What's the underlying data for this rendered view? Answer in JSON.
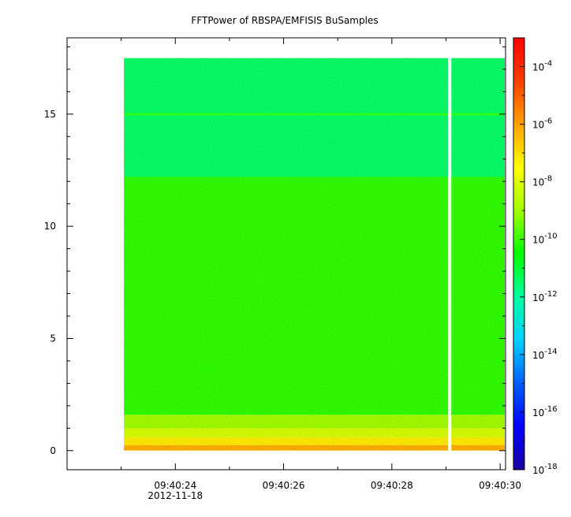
{
  "chart_data": {
    "type": "heatmap",
    "title": "FFTPower of RBSPA/EMFISIS  BuSamples",
    "xlabel": "",
    "ylabel": "",
    "x_tick_labels": [
      "09:40:24",
      "09:40:26",
      "09:40:28",
      "09:40:30"
    ],
    "x_date_label": "2012-11-18",
    "x_range_seconds": [
      22.0,
      30.1
    ],
    "data_x_range_seconds": [
      23.05,
      30.1
    ],
    "gap_at_seconds": 29.07,
    "y_ticks": [
      0,
      5,
      10,
      15
    ],
    "ylim": [
      -0.85,
      18.4
    ],
    "data_y_range": [
      0,
      17.5
    ],
    "colorbar": {
      "scale": "log",
      "range": [
        1e-18,
        0.001
      ],
      "tick_exponents": [
        -18,
        -16,
        -14,
        -12,
        -10,
        -8,
        -6,
        -4
      ],
      "tick_base": "10",
      "colormap": [
        "#1a00a0",
        "#0000ff",
        "#0060ff",
        "#00d0ff",
        "#00ffa0",
        "#00ff00",
        "#a0ff00",
        "#ffff00",
        "#ffa000",
        "#ff4000",
        "#ff0000"
      ]
    },
    "bands": [
      {
        "y_from": 0.0,
        "y_to": 0.25,
        "log10_power": -6.2
      },
      {
        "y_from": 0.25,
        "y_to": 0.6,
        "log10_power": -7.2
      },
      {
        "y_from": 0.6,
        "y_to": 1.0,
        "log10_power": -8.2
      },
      {
        "y_from": 1.0,
        "y_to": 1.6,
        "log10_power": -9.0
      },
      {
        "y_from": 1.6,
        "y_to": 12.2,
        "log10_power": -10.1
      },
      {
        "y_from": 12.2,
        "y_to": 17.5,
        "log10_power": -11.5
      }
    ],
    "line_feature": {
      "y": 15.0,
      "log10_power": -10.0
    }
  }
}
